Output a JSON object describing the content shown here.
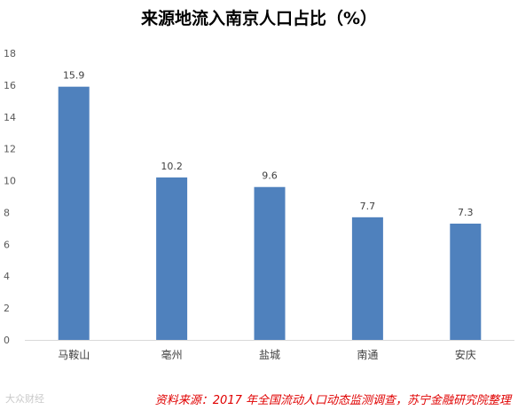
{
  "chart_data": {
    "type": "bar",
    "title": "来源地流入南京人口占比（%）",
    "categories": [
      "马鞍山",
      "亳州",
      "盐城",
      "南通",
      "安庆"
    ],
    "values": [
      15.9,
      10.2,
      9.6,
      7.7,
      7.3
    ],
    "data_labels": [
      "15.9",
      "10.2",
      "9.6",
      "7.7",
      "7.3"
    ],
    "ylim": [
      0,
      18
    ],
    "yticks": [
      0,
      2,
      4,
      6,
      8,
      10,
      12,
      14,
      16,
      18
    ],
    "grid": false,
    "legend": "none",
    "bar_color": "#4F81BD"
  },
  "footer": {
    "watermark": "大众财经",
    "source": "资料来源：2017 年全国流动人口动态监测调查，苏宁金融研究院整理"
  }
}
